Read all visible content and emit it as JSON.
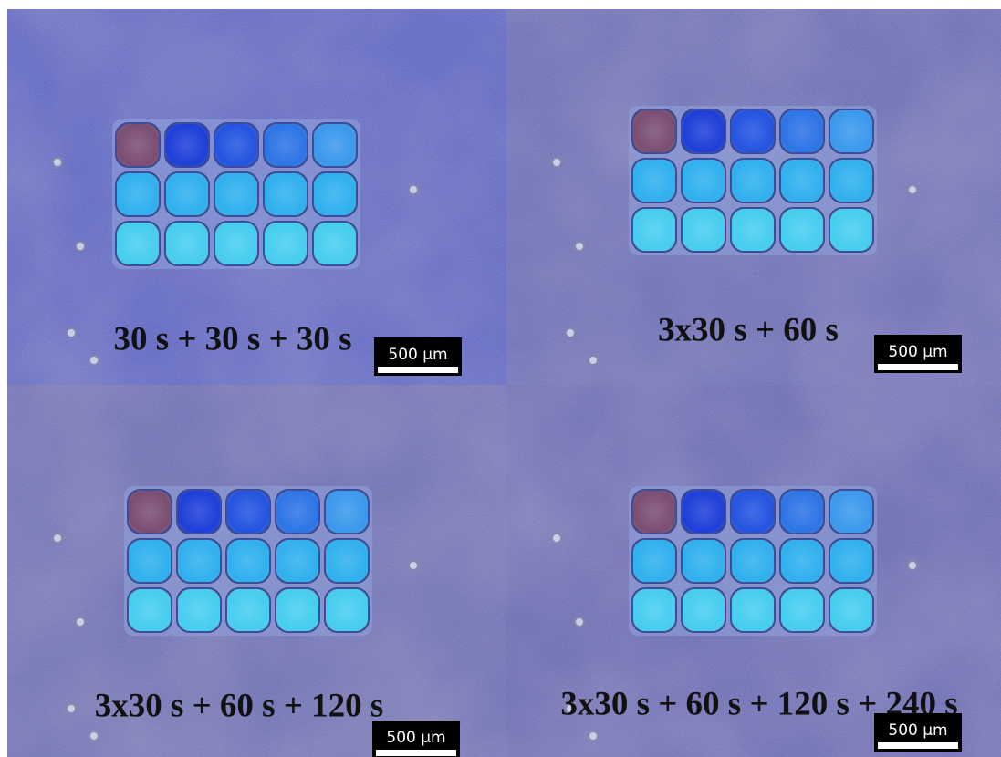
{
  "panels": [
    {
      "label": "30 s + 30 s + 30 s",
      "scale_bar": "500 µm"
    },
    {
      "label": "3x30 s + 60 s",
      "scale_bar": "500 µm"
    },
    {
      "label": "3x30 s + 60 s + 120 s",
      "scale_bar": "500 µm"
    },
    {
      "label": "3x30 s + 60 s + 120 s + 240 s",
      "scale_bar": "500 µm"
    }
  ]
}
